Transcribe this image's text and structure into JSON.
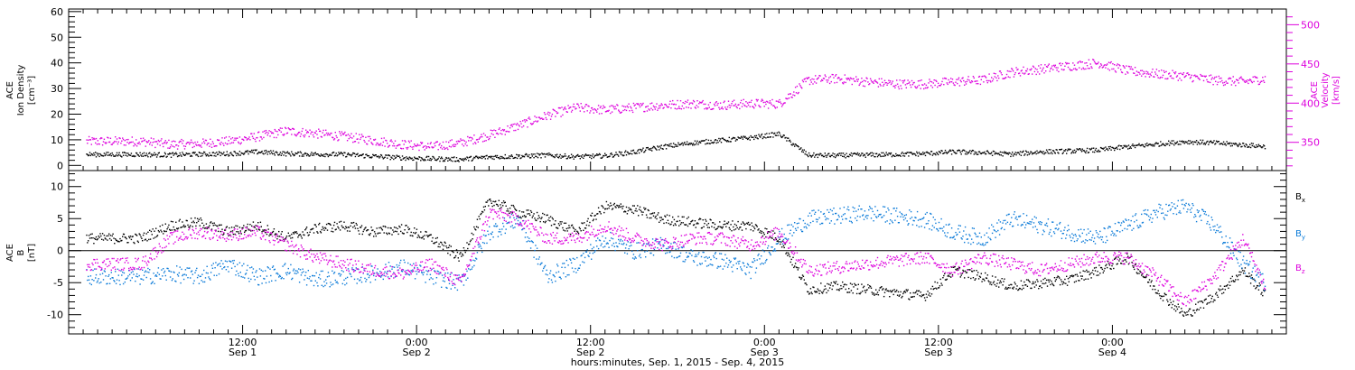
{
  "chart_data": [
    {
      "type": "scatter",
      "panel": "top",
      "ylabel_left": [
        "ACE",
        "Ion Density",
        "[cm⁻³]"
      ],
      "ylabel_right": [
        "ACE",
        "Velocity",
        "[km/s]"
      ],
      "ylim_left": [
        -2,
        61
      ],
      "yticks_left": [
        0,
        10,
        20,
        30,
        40,
        50,
        60
      ],
      "ylim_right": [
        314,
        520
      ],
      "yticks_right": [
        350,
        400,
        450,
        500
      ],
      "series": [
        {
          "axis": "left",
          "color": "#000000",
          "x_hours": [
            0,
            2,
            4,
            6,
            8,
            10,
            12,
            14,
            16,
            18,
            20,
            22,
            24,
            26,
            28,
            30,
            32,
            34,
            36,
            38,
            40,
            42,
            44,
            46,
            48,
            50,
            52,
            54,
            56,
            58,
            60,
            62,
            64,
            66,
            68,
            70,
            72,
            74,
            76,
            78,
            80
          ],
          "values": [
            4.5,
            4.3,
            4.6,
            4.8,
            5.5,
            4.8,
            4.6,
            4.5,
            3.8,
            3.2,
            2.8,
            2.6,
            3.5,
            3.8,
            4.2,
            3.6,
            4,
            5.5,
            7.5,
            9,
            10,
            11,
            12.5,
            4.2,
            4.1,
            4.3,
            4.5,
            4.8,
            5.5,
            5.2,
            4.6,
            5.5,
            5.8,
            6.2,
            7.5,
            8.5,
            9.5,
            9,
            8.2,
            7.5,
            8.5
          ]
        },
        {
          "axis": "right",
          "color": "#dd00dd",
          "x_hours": [
            0,
            2,
            4,
            6,
            8,
            10,
            12,
            14,
            16,
            18,
            20,
            22,
            24,
            26,
            28,
            30,
            32,
            34,
            36,
            38,
            40,
            42,
            44,
            46,
            48,
            50,
            52,
            54,
            56,
            58,
            60,
            62,
            64,
            66,
            68,
            70,
            72,
            74,
            76,
            78,
            80
          ],
          "values": [
            352,
            348,
            349,
            352,
            358,
            365,
            362,
            358,
            353,
            348,
            345,
            350,
            360,
            372,
            385,
            395,
            392,
            395,
            398,
            400,
            398,
            400,
            400,
            430,
            432,
            428,
            425,
            425,
            428,
            430,
            440,
            444,
            448,
            452,
            442,
            438,
            435,
            430,
            428,
            433,
            458
          ]
        }
      ]
    },
    {
      "type": "scatter",
      "panel": "bottom",
      "ylabel_left": [
        "ACE",
        "B",
        "[nT]"
      ],
      "ylim": [
        -13,
        12.5
      ],
      "yticks": [
        -10,
        -5,
        0,
        5,
        10
      ],
      "legend": [
        "Bₓ",
        "Bᵧ",
        "B_z"
      ],
      "series": [
        {
          "name": "Bₓ",
          "legend_main": "B",
          "legend_sub": "x",
          "color": "#000000",
          "x_hours": [
            0,
            2,
            4,
            6,
            8,
            10,
            12,
            14,
            16,
            18,
            20,
            22,
            24,
            26,
            28,
            30,
            32,
            34,
            36,
            38,
            40,
            42,
            44,
            46,
            48,
            50,
            52,
            54,
            56,
            58,
            60,
            62,
            64,
            66,
            68,
            70,
            72,
            74,
            76,
            78,
            80
          ],
          "values": [
            2,
            4,
            4.5,
            3,
            4,
            2,
            3.5,
            4,
            3,
            3.5,
            2,
            -1,
            8,
            6,
            5,
            3,
            7,
            6.5,
            5,
            4.5,
            4,
            4,
            2,
            -6,
            -5.5,
            -6,
            -6.5,
            -7,
            -3,
            -4,
            -5.5,
            -5,
            -4.5,
            -3,
            -1,
            -6,
            -10,
            -7,
            -3,
            -8,
            -9.5
          ]
        },
        {
          "name": "Bᵧ",
          "legend_main": "B",
          "legend_sub": "y",
          "color": "#0a7ad8",
          "x_hours": [
            0,
            2,
            4,
            6,
            8,
            10,
            12,
            14,
            16,
            18,
            20,
            22,
            24,
            26,
            28,
            30,
            32,
            34,
            36,
            38,
            40,
            42,
            44,
            46,
            48,
            50,
            52,
            54,
            56,
            58,
            60,
            62,
            64,
            66,
            68,
            70,
            72,
            74,
            76,
            78,
            80
          ],
          "values": [
            -4,
            -3.5,
            -4,
            -2,
            -4,
            -3,
            -4.5,
            -4,
            -3.5,
            -2.5,
            -4,
            -5,
            3,
            5,
            -4,
            -2,
            2,
            0,
            1,
            -1,
            -1.5,
            -3,
            2,
            5,
            5.5,
            6,
            5.5,
            5,
            3,
            2,
            5,
            4,
            3,
            2,
            4,
            6,
            7,
            4,
            -2,
            -6,
            6
          ]
        },
        {
          "name": "B_z",
          "legend_main": "B",
          "legend_sub": "z",
          "color": "#dd00dd",
          "x_hours": [
            0,
            2,
            4,
            6,
            8,
            10,
            12,
            14,
            16,
            18,
            20,
            22,
            24,
            26,
            28,
            30,
            32,
            34,
            36,
            38,
            40,
            42,
            44,
            46,
            48,
            50,
            52,
            54,
            56,
            58,
            60,
            62,
            64,
            66,
            68,
            70,
            72,
            74,
            76,
            78,
            80
          ],
          "values": [
            -2,
            2,
            3,
            2.5,
            3,
            1,
            -1,
            -2,
            -3,
            -3.5,
            -2,
            -5,
            6,
            5,
            2,
            2,
            4,
            2,
            1,
            2,
            2,
            1,
            3,
            -3,
            -2.5,
            -2,
            -1.5,
            -1,
            -3,
            -1,
            -2,
            -3,
            -2,
            -1,
            -1,
            -4,
            -8,
            -4,
            2,
            -8,
            -4
          ]
        }
      ]
    }
  ],
  "x_axis": {
    "ticks": [
      {
        "time": "12:00",
        "date": "Sep 1"
      },
      {
        "time": "0:00",
        "date": "Sep 2"
      },
      {
        "time": "12:00",
        "date": "Sep 2"
      },
      {
        "time": "0:00",
        "date": "Sep 3"
      },
      {
        "time": "12:00",
        "date": "Sep 3"
      },
      {
        "time": "0:00",
        "date": "Sep 4"
      }
    ],
    "tick_hours": [
      7,
      19,
      31,
      43,
      55,
      67
    ],
    "range_hours": [
      -5,
      79
    ],
    "label": "hours:minutes, Sep.  1, 2015 - Sep.  4, 2015"
  }
}
